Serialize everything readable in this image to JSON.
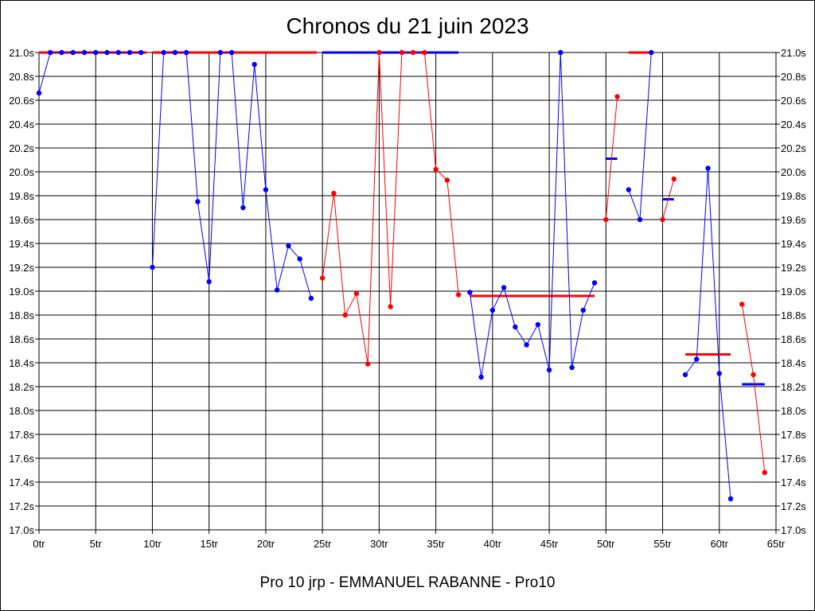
{
  "title": "Chronos du 21 juin 2023",
  "footer": "Pro 10 jrp - EMMANUEL RABANNE - Pro10",
  "colors": {
    "blue": "#0000ff",
    "red": "#ff0000",
    "grid": "#000000"
  },
  "chart_data": {
    "type": "line",
    "title": "Chronos du 21 juin 2023",
    "xlabel": "",
    "ylabel": "",
    "xlim": [
      0,
      65
    ],
    "ylim": [
      17.0,
      21.0
    ],
    "x_ticks": [
      0,
      5,
      10,
      15,
      20,
      25,
      30,
      35,
      40,
      45,
      50,
      55,
      60,
      65
    ],
    "x_tick_labels": [
      "0tr",
      "5tr",
      "10tr",
      "15tr",
      "20tr",
      "25tr",
      "30tr",
      "35tr",
      "40tr",
      "45tr",
      "50tr",
      "55tr",
      "60tr",
      "65tr"
    ],
    "y_ticks": [
      17.0,
      17.2,
      17.4,
      17.6,
      17.8,
      18.0,
      18.2,
      18.4,
      18.6,
      18.8,
      19.0,
      19.2,
      19.4,
      19.6,
      19.8,
      20.0,
      20.2,
      20.4,
      20.6,
      20.8,
      21.0
    ],
    "y_tick_labels": [
      "17.0s",
      "17.2s",
      "17.4s",
      "17.6s",
      "17.8s",
      "18.0s",
      "18.2s",
      "18.4s",
      "18.6s",
      "18.8s",
      "19.0s",
      "19.2s",
      "19.4s",
      "19.6s",
      "19.8s",
      "20.0s",
      "20.2s",
      "20.4s",
      "20.6s",
      "20.8s",
      "21.0s"
    ],
    "grid": true,
    "series": [
      {
        "color": "blue",
        "points": [
          [
            0,
            20.66
          ],
          [
            1,
            21.0
          ],
          [
            2,
            21.0
          ],
          [
            3,
            21.0
          ],
          [
            4,
            21.0
          ],
          [
            5,
            21.0
          ],
          [
            6,
            21.0
          ],
          [
            7,
            21.0
          ],
          [
            8,
            21.0
          ],
          [
            9,
            21.0
          ]
        ]
      },
      {
        "color": "blue",
        "points": [
          [
            10,
            19.2
          ],
          [
            11,
            21.0
          ],
          [
            12,
            21.0
          ],
          [
            13,
            21.0
          ],
          [
            14,
            19.75
          ],
          [
            15,
            19.08
          ],
          [
            16,
            21.0
          ],
          [
            17,
            21.0
          ],
          [
            18,
            19.7
          ],
          [
            19,
            20.9
          ],
          [
            20,
            19.85
          ],
          [
            21,
            19.01
          ],
          [
            22,
            19.38
          ],
          [
            23,
            19.27
          ],
          [
            24,
            18.94
          ]
        ]
      },
      {
        "color": "red",
        "points": [
          [
            25,
            19.11
          ],
          [
            26,
            19.82
          ],
          [
            27,
            18.8
          ],
          [
            28,
            18.98
          ],
          [
            29,
            18.39
          ],
          [
            30,
            21.0
          ],
          [
            31,
            18.87
          ],
          [
            32,
            21.0
          ],
          [
            33,
            21.0
          ],
          [
            34,
            21.0
          ],
          [
            35,
            20.02
          ],
          [
            36,
            19.93
          ],
          [
            37,
            18.97
          ]
        ]
      },
      {
        "color": "blue",
        "points": [
          [
            38,
            18.99
          ],
          [
            39,
            18.28
          ],
          [
            40,
            18.84
          ],
          [
            41,
            19.03
          ],
          [
            42,
            18.7
          ],
          [
            43,
            18.55
          ],
          [
            44,
            18.72
          ],
          [
            45,
            18.34
          ],
          [
            46,
            21.0
          ],
          [
            47,
            18.36
          ],
          [
            48,
            18.84
          ],
          [
            49,
            19.07
          ]
        ]
      },
      {
        "color": "red",
        "points": [
          [
            50,
            19.6
          ],
          [
            51,
            20.63
          ]
        ]
      },
      {
        "color": "blue",
        "points": [
          [
            52,
            19.85
          ],
          [
            53,
            19.6
          ],
          [
            54,
            21.0
          ]
        ]
      },
      {
        "color": "red",
        "points": [
          [
            55,
            19.6
          ],
          [
            56,
            19.94
          ]
        ]
      },
      {
        "color": "blue",
        "points": [
          [
            57,
            18.3
          ],
          [
            58,
            18.43
          ],
          [
            59,
            20.03
          ],
          [
            60,
            18.31
          ],
          [
            61,
            17.26
          ]
        ]
      },
      {
        "color": "red",
        "points": [
          [
            62,
            18.89
          ],
          [
            63,
            18.3
          ],
          [
            64,
            17.48
          ]
        ]
      }
    ],
    "average_lines": [
      {
        "color": "red",
        "x": [
          0,
          9.5
        ],
        "y": 21.0
      },
      {
        "color": "red",
        "x": [
          10,
          24.5
        ],
        "y": 21.0
      },
      {
        "color": "blue",
        "x": [
          25,
          37
        ],
        "y": 21.0
      },
      {
        "color": "red",
        "x": [
          38,
          49
        ],
        "y": 18.96
      },
      {
        "color": "blue",
        "x": [
          50,
          51
        ],
        "y": 20.11
      },
      {
        "color": "red",
        "x": [
          52,
          54
        ],
        "y": 21.0
      },
      {
        "color": "blue",
        "x": [
          55,
          56
        ],
        "y": 19.77
      },
      {
        "color": "red",
        "x": [
          57,
          61
        ],
        "y": 18.47
      },
      {
        "color": "blue",
        "x": [
          62,
          64
        ],
        "y": 18.22
      }
    ]
  }
}
